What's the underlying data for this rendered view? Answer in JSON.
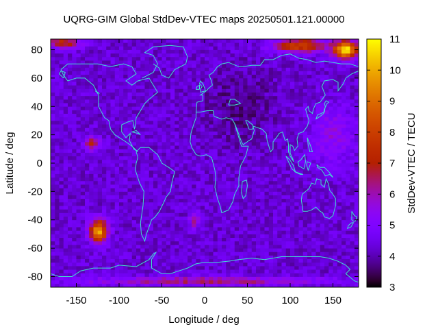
{
  "chart_data": {
    "type": "heatmap",
    "title": "UQRG-GIM Global StdDev-VTEC maps 20250501.121.00000",
    "xlabel": "Longitude / deg",
    "ylabel": "Latitude / deg",
    "colorbar_label": "StdDev-VTEC / TECU",
    "xlim": [
      -180,
      180
    ],
    "ylim": [
      -87.5,
      87.5
    ],
    "x_ticks": [
      -150,
      -100,
      -50,
      0,
      50,
      100,
      150
    ],
    "y_ticks": [
      -80,
      -60,
      -40,
      -20,
      0,
      20,
      40,
      60,
      80
    ],
    "colorbar_range": [
      3,
      11
    ],
    "colorbar_ticks": [
      3,
      4,
      5,
      6,
      7,
      8,
      9,
      10,
      11
    ],
    "colormap": "gnuplot default (black-blue-purple-red-orange-yellow)",
    "grid_resolution": {
      "lon_step": 5,
      "lat_step": 2.5
    },
    "field_summary": {
      "background": 4.3,
      "hotspots": [
        {
          "name": "north-pole-east",
          "lon": 165,
          "lat": 80,
          "value": 11
        },
        {
          "name": "north-pole-east-orange",
          "lon": 115,
          "lat": 82,
          "value": 8.5
        },
        {
          "name": "north-pole-west",
          "lon": -160,
          "lat": 85,
          "value": 7.8
        },
        {
          "name": "south-pacific",
          "lon": -125,
          "lat": -47,
          "value": 10.6
        },
        {
          "name": "pacific-equatorial",
          "lon": -133,
          "lat": 13,
          "value": 7.3
        },
        {
          "name": "south-africa",
          "lon": -12,
          "lat": -40,
          "value": 6.6
        },
        {
          "name": "antarctic-belt",
          "lon": 0,
          "lat": -82,
          "value": 7.0
        }
      ]
    },
    "overlay": "coastlines (cyan)",
    "overlay_color": "#40e0d0"
  }
}
